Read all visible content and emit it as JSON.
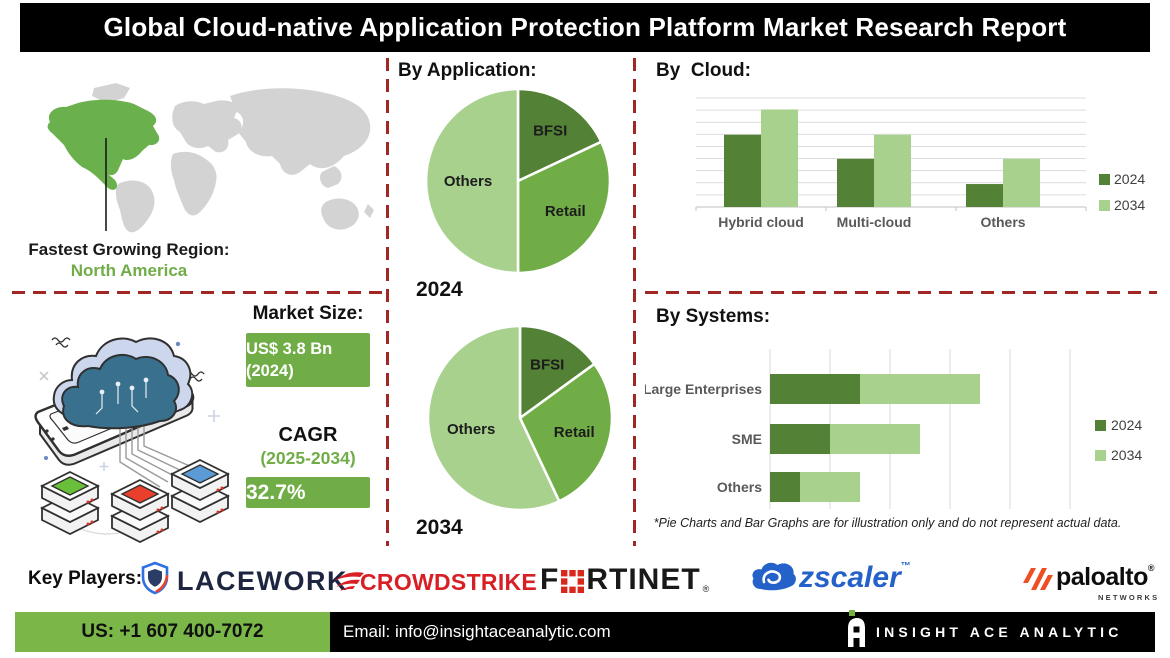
{
  "header": {
    "title": "Global Cloud-native Application Protection Platform Market Research Report"
  },
  "left": {
    "region_label": "Fastest Growing Region:",
    "region_value": "North America",
    "market_size_label": "Market Size:",
    "market_size_value": "US$ 3.8 Bn",
    "market_size_year": "(2024)",
    "cagr_label": "CAGR",
    "cagr_period": "(2025-2034)",
    "cagr_value": "32.7%"
  },
  "middle": {
    "title": "By Application:",
    "pie_2024_label": "2024",
    "pie_2034_label": "2034"
  },
  "right": {
    "cloud_title": "By  Cloud:",
    "systems_title": "By Systems:",
    "footnote": "*Pie Charts and Bar Graphs are for illustration only and do not represent actual data."
  },
  "chart_data": [
    {
      "type": "pie",
      "name": "by-application-2024",
      "title": "By Application:",
      "year_label": "2024",
      "labels": [
        "BFSI",
        "Retail",
        "Others"
      ],
      "values": [
        18,
        32,
        50
      ],
      "colors": [
        "#538135",
        "#70ad47",
        "#a9d18e"
      ]
    },
    {
      "type": "pie",
      "name": "by-application-2034",
      "title": "By Application:",
      "year_label": "2034",
      "labels": [
        "BFSI",
        "Retail",
        "Others"
      ],
      "values": [
        15,
        28,
        57
      ],
      "colors": [
        "#538135",
        "#70ad47",
        "#a9d18e"
      ]
    },
    {
      "type": "bar",
      "name": "by-cloud",
      "title": "By Cloud:",
      "categories": [
        "Hybrid cloud",
        "Multi-cloud",
        "Others"
      ],
      "series": [
        {
          "name": "2024",
          "color": "#538135",
          "values": [
            63,
            42,
            20
          ]
        },
        {
          "name": "2034",
          "color": "#a9d18e",
          "values": [
            85,
            63,
            42
          ]
        }
      ],
      "ylim": [
        0,
        95
      ],
      "grid": true,
      "legend_position": "right",
      "note": "illustration only - no axis value labels shown"
    },
    {
      "type": "bar",
      "name": "by-systems",
      "orientation": "horizontal",
      "stacked": true,
      "title": "By Systems:",
      "categories": [
        "Large Enterprises",
        "SME",
        "Others"
      ],
      "series": [
        {
          "name": "2024",
          "color": "#538135",
          "values": [
            1.5,
            1.0,
            0.5
          ]
        },
        {
          "name": "2034",
          "color": "#a9d18e",
          "values": [
            2.0,
            1.5,
            1.0
          ]
        }
      ],
      "xlim": [
        0,
        5
      ],
      "grid": true,
      "legend_position": "right",
      "note": "illustration only - no axis value labels shown"
    }
  ],
  "key_players": {
    "label": "Key Players:",
    "lacework": "LACEWORK",
    "crowdstrike": "CROWDSTRIKE",
    "fortinet_f": "F",
    "fortinet_rest": "RTINET",
    "fortinet_reg": "®",
    "zscaler": "zscaler",
    "zscaler_tm": "™",
    "paloalto": "paloalto",
    "paloalto_reg": "®",
    "paloalto_sub": "NETWORKS"
  },
  "footer": {
    "phone": "US: +1 607 400-7072",
    "email": "Email: info@insightaceanalytic.com",
    "brand": "INSIGHT ACE ANALYTIC"
  },
  "colors": {
    "green_dark_2024": "#538135",
    "green_mid": "#70ad47",
    "green_light_2034": "#a9d18e",
    "dashed_divider_red": "#a12727",
    "footer_green": "#7ab648",
    "banner_black": "#000000"
  }
}
